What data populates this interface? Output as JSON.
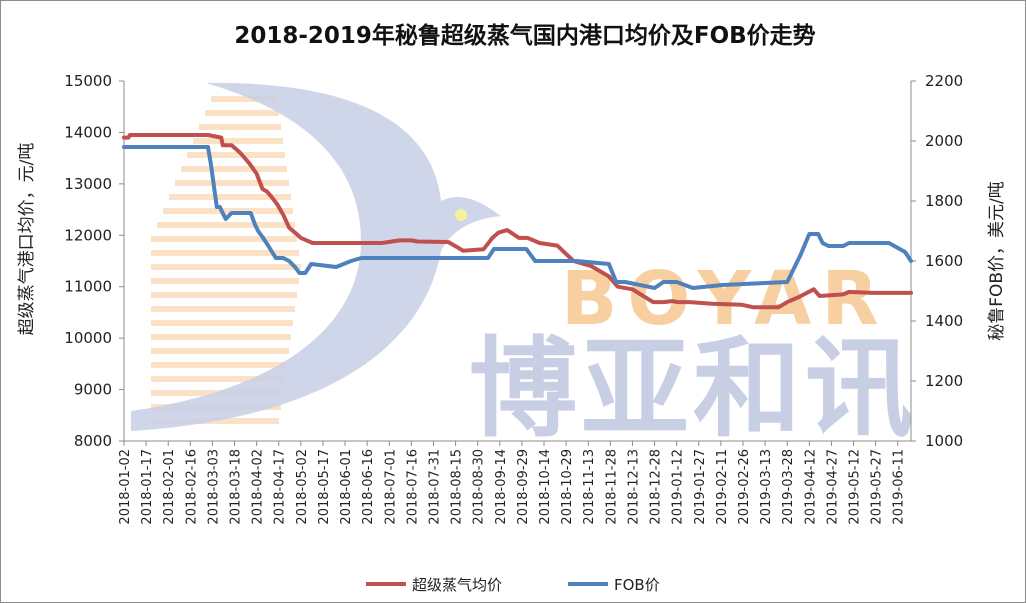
{
  "chart_data": {
    "type": "line",
    "title": "2018-2019年秘鲁超级蒸气国内港口均价及FOB价走势",
    "ylabel": "超级蒸气港口均价，元/吨",
    "y2label": "秘鲁FOB价，美元/吨",
    "ylim": [
      8000,
      15000
    ],
    "y2lim": [
      1000,
      2200
    ],
    "yticks": [
      "8000",
      "9000",
      "10000",
      "11000",
      "12000",
      "13000",
      "14000",
      "15000"
    ],
    "y2ticks": [
      "1000",
      "1200",
      "1400",
      "1600",
      "1800",
      "2000",
      "2200"
    ],
    "x_start": "2018-01-02",
    "x_end": "2019-06-20",
    "xticks": [
      "2018-01-02",
      "2018-01-17",
      "2018-02-01",
      "2018-02-16",
      "2018-03-03",
      "2018-03-18",
      "2018-04-02",
      "2018-04-17",
      "2018-05-02",
      "2018-05-17",
      "2018-06-01",
      "2018-06-16",
      "2018-07-01",
      "2018-07-16",
      "2018-07-31",
      "2018-08-15",
      "2018-08-30",
      "2018-09-14",
      "2018-09-29",
      "2018-10-14",
      "2018-10-29",
      "2018-11-13",
      "2018-11-28",
      "2018-12-13",
      "2018-12-28",
      "2019-01-12",
      "2019-01-27",
      "2019-02-11",
      "2019-02-26",
      "2019-03-13",
      "2019-03-28",
      "2019-04-12",
      "2019-04-27",
      "2019-05-12",
      "2019-05-27",
      "2019-06-11"
    ],
    "grid": false,
    "legend_position": "bottom",
    "series": [
      {
        "name": "超级蒸气均价",
        "axis": "left",
        "color": "#c0504d",
        "x": [
          "2018-01-02",
          "2018-01-05",
          "2018-01-06",
          "2018-01-10",
          "2018-02-19",
          "2018-02-28",
          "2018-03-09",
          "2018-03-10",
          "2018-03-16",
          "2018-03-20",
          "2018-03-22",
          "2018-03-28",
          "2018-04-02",
          "2018-04-06",
          "2018-04-09",
          "2018-04-12",
          "2018-04-16",
          "2018-04-20",
          "2018-04-24",
          "2018-04-28",
          "2018-05-02",
          "2018-05-06",
          "2018-05-10",
          "2018-05-14",
          "2018-05-20",
          "2018-05-26",
          "2018-06-12",
          "2018-06-20",
          "2018-06-26",
          "2018-07-08",
          "2018-07-16",
          "2018-07-20",
          "2018-08-10",
          "2018-08-16",
          "2018-08-20",
          "2018-09-03",
          "2018-09-09",
          "2018-09-13",
          "2018-09-19",
          "2018-09-27",
          "2018-10-03",
          "2018-10-11",
          "2018-10-23",
          "2018-11-03",
          "2018-11-15",
          "2018-11-27",
          "2018-12-03",
          "2018-12-13",
          "2018-12-27",
          "2019-01-03",
          "2019-01-09",
          "2019-01-13",
          "2019-01-21",
          "2019-02-05",
          "2019-02-25",
          "2019-03-05",
          "2019-03-22",
          "2019-03-28",
          "2019-04-05",
          "2019-04-15",
          "2019-04-19",
          "2019-05-05",
          "2019-05-09",
          "2019-05-25",
          "2019-06-20"
        ],
        "values": [
          13900,
          13900,
          13950,
          13950,
          13950,
          13950,
          13900,
          13750,
          13750,
          13650,
          13600,
          13400,
          13200,
          12900,
          12850,
          12750,
          12600,
          12400,
          12150,
          12050,
          11950,
          11900,
          11850,
          11850,
          11850,
          11850,
          11850,
          11850,
          11850,
          11900,
          11900,
          11880,
          11870,
          11770,
          11700,
          11730,
          11950,
          12050,
          12100,
          11950,
          11950,
          11850,
          11800,
          11500,
          11400,
          11200,
          11000,
          10950,
          10700,
          10700,
          10720,
          10700,
          10700,
          10670,
          10650,
          10600,
          10600,
          10700,
          10800,
          10950,
          10820,
          10850,
          10900,
          10880,
          10880
        ]
      },
      {
        "name": "FOB价",
        "axis": "right",
        "color": "#4f81bd",
        "x": [
          "2018-01-02",
          "2018-02-28",
          "2018-03-02",
          "2018-03-06",
          "2018-03-08",
          "2018-03-10",
          "2018-03-12",
          "2018-03-16",
          "2018-03-29",
          "2018-04-01",
          "2018-04-03",
          "2018-04-06",
          "2018-04-10",
          "2018-04-15",
          "2018-04-20",
          "2018-04-24",
          "2018-04-28",
          "2018-05-01",
          "2018-05-05",
          "2018-05-09",
          "2018-05-26",
          "2018-06-05",
          "2018-06-12",
          "2018-06-18",
          "2018-09-06",
          "2018-09-10",
          "2018-09-18",
          "2018-10-02",
          "2018-10-08",
          "2018-11-05",
          "2018-11-27",
          "2018-12-02",
          "2018-12-08",
          "2018-12-28",
          "2019-01-03",
          "2019-01-12",
          "2019-01-23",
          "2019-02-12",
          "2019-03-28",
          "2019-04-02",
          "2019-04-06",
          "2019-04-12",
          "2019-04-18",
          "2019-04-21",
          "2019-04-25",
          "2019-05-05",
          "2019-05-09",
          "2019-06-01",
          "2019-06-05",
          "2019-06-16",
          "2019-06-20"
        ],
        "values": [
          1980,
          1980,
          1920,
          1780,
          1780,
          1760,
          1740,
          1760,
          1760,
          1720,
          1700,
          1680,
          1650,
          1610,
          1610,
          1600,
          1580,
          1560,
          1560,
          1590,
          1580,
          1600,
          1610,
          1610,
          1610,
          1640,
          1640,
          1640,
          1600,
          1600,
          1590,
          1530,
          1530,
          1510,
          1530,
          1530,
          1510,
          1520,
          1530,
          1580,
          1620,
          1690,
          1690,
          1660,
          1650,
          1650,
          1660,
          1660,
          1660,
          1630,
          1600
        ]
      }
    ]
  },
  "watermark": {
    "latin": "BOYAR",
    "cjk": "博亚和讯"
  }
}
